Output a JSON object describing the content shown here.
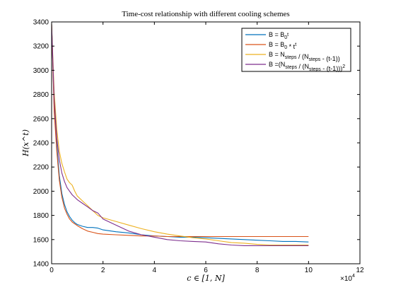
{
  "chart_data": {
    "type": "line",
    "title": "Time-cost relationship with different cooling schemes",
    "xlabel": "c ∈ [1, N]",
    "ylabel": "H(x^t)",
    "xlim": [
      0,
      120000
    ],
    "ylim": [
      1400,
      3400
    ],
    "x_exponent_label": "×10",
    "x_exponent_power": "4",
    "x_ticks": [
      0,
      20000,
      40000,
      60000,
      80000,
      100000,
      120000
    ],
    "x_tick_labels": [
      "0",
      "2",
      "4",
      "6",
      "8",
      "10",
      "12"
    ],
    "y_ticks": [
      1400,
      1600,
      1800,
      2000,
      2200,
      2400,
      2600,
      2800,
      3000,
      3200,
      3400
    ],
    "y_tick_labels": [
      "1400",
      "1600",
      "1800",
      "2000",
      "2200",
      "2400",
      "2600",
      "2800",
      "3000",
      "3200",
      "3400"
    ],
    "grid": false,
    "legend_position": "top-right",
    "series": [
      {
        "name": "B = B_0^t",
        "legend_parts": [
          {
            "t": "B = B"
          },
          {
            "t": "0",
            "s": "sub"
          },
          {
            "t": "t",
            "s": "sup"
          }
        ],
        "color": "#0072BD",
        "x": [
          0,
          1000,
          2000,
          3000,
          4000,
          5000,
          6000,
          7000,
          8000,
          9000,
          10000,
          12000,
          14000,
          16000,
          18000,
          20000,
          25000,
          30000,
          35000,
          40000,
          45000,
          50000,
          55000,
          60000,
          65000,
          70000,
          75000,
          80000,
          85000,
          90000,
          95000,
          100000
        ],
        "y": [
          3380,
          2700,
          2380,
          2130,
          1980,
          1890,
          1830,
          1790,
          1760,
          1740,
          1725,
          1710,
          1700,
          1700,
          1695,
          1680,
          1665,
          1655,
          1640,
          1630,
          1625,
          1620,
          1620,
          1615,
          1610,
          1605,
          1600,
          1595,
          1590,
          1585,
          1585,
          1580
        ]
      },
      {
        "name": "B = B_0 * t^t",
        "legend_parts": [
          {
            "t": "B = B"
          },
          {
            "t": "0",
            "s": "sub"
          },
          {
            "t": " * t"
          },
          {
            "t": "t",
            "s": "sup"
          }
        ],
        "color": "#D95319",
        "x": [
          0,
          1000,
          2000,
          3000,
          4000,
          5000,
          6000,
          7000,
          8000,
          9000,
          10000,
          12000,
          14000,
          16000,
          18000,
          20000,
          25000,
          30000,
          35000,
          40000,
          45000,
          50000,
          55000,
          60000,
          65000,
          70000,
          75000,
          80000,
          85000,
          90000,
          95000,
          100000
        ],
        "y": [
          3380,
          2660,
          2330,
          2090,
          1950,
          1860,
          1810,
          1770,
          1745,
          1730,
          1715,
          1690,
          1670,
          1660,
          1650,
          1645,
          1640,
          1635,
          1630,
          1630,
          1625,
          1625,
          1625,
          1625,
          1625,
          1625,
          1625,
          1625,
          1625,
          1625,
          1625,
          1625
        ]
      },
      {
        "name": "B = N_steps / (N_steps - (t-1))",
        "legend_parts": [
          {
            "t": "B = N"
          },
          {
            "t": "steps",
            "s": "sub"
          },
          {
            "t": " / (N"
          },
          {
            "t": "steps",
            "s": "sub"
          },
          {
            "t": " - (t-1))"
          }
        ],
        "color": "#EDB120",
        "x": [
          0,
          1000,
          2000,
          3000,
          4000,
          5000,
          6000,
          7000,
          8000,
          9000,
          10000,
          12000,
          14000,
          16000,
          18000,
          20000,
          25000,
          30000,
          35000,
          40000,
          45000,
          50000,
          55000,
          60000,
          65000,
          70000,
          75000,
          80000,
          85000,
          90000,
          95000,
          100000
        ],
        "y": [
          3380,
          2820,
          2510,
          2330,
          2230,
          2160,
          2100,
          2070,
          2050,
          2000,
          1960,
          1920,
          1880,
          1840,
          1800,
          1780,
          1750,
          1720,
          1690,
          1665,
          1645,
          1630,
          1615,
          1605,
          1590,
          1575,
          1570,
          1560,
          1555,
          1555,
          1555,
          1555
        ]
      },
      {
        "name": "B = (N_steps / (N_steps - (t-1)))^2",
        "legend_parts": [
          {
            "t": "B =(N"
          },
          {
            "t": "steps",
            "s": "sub"
          },
          {
            "t": " / (N"
          },
          {
            "t": "steps",
            "s": "sub"
          },
          {
            "t": " - (t-1)))"
          },
          {
            "t": "2",
            "s": "sup"
          }
        ],
        "color": "#7E2F8E",
        "x": [
          0,
          1000,
          2000,
          3000,
          4000,
          5000,
          6000,
          7000,
          8000,
          9000,
          10000,
          12000,
          14000,
          16000,
          18000,
          20000,
          25000,
          30000,
          35000,
          40000,
          45000,
          50000,
          55000,
          60000,
          65000,
          70000,
          75000,
          80000,
          85000,
          90000,
          95000,
          100000
        ],
        "y": [
          3380,
          2760,
          2440,
          2260,
          2150,
          2080,
          2030,
          2000,
          1970,
          1950,
          1930,
          1900,
          1870,
          1840,
          1820,
          1770,
          1720,
          1670,
          1640,
          1620,
          1600,
          1590,
          1585,
          1580,
          1565,
          1555,
          1550,
          1550,
          1550,
          1550,
          1550,
          1550
        ]
      }
    ]
  }
}
